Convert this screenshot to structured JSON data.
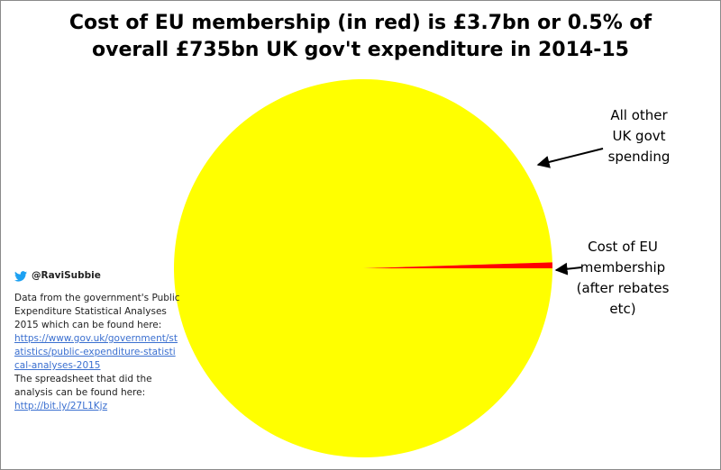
{
  "title": {
    "line1": "Cost of EU membership (in red) is £3.7bn or 0.5% of",
    "line2": "overall  £735bn UK gov't expenditure in 2014-15"
  },
  "chart_data": {
    "type": "pie",
    "unit": "£bn",
    "slices": [
      {
        "label_lines": [
          "All other",
          "UK govt",
          "spending"
        ],
        "value": 731.3,
        "color": "#ffff00"
      },
      {
        "label_lines": [
          "Cost of EU",
          "membership",
          "(after rebates",
          "etc)"
        ],
        "value": 3.7,
        "color": "#ff0000"
      }
    ]
  },
  "notes": {
    "twitter_handle": "@RaviSubbie",
    "twitter_color": "#1da1f2",
    "source_text": "Data from the government's Public Expenditure Statistical Analyses 2015 which can be found here:",
    "source_link": "https://www.gov.uk/government/statistics/public-expenditure-statistical-analyses-2015",
    "spreadsheet_text": "The spreadsheet that did the analysis can be found here:",
    "spreadsheet_link": "http://bit.ly/27L1Kjz",
    "link_color": "#3a6fd0"
  }
}
